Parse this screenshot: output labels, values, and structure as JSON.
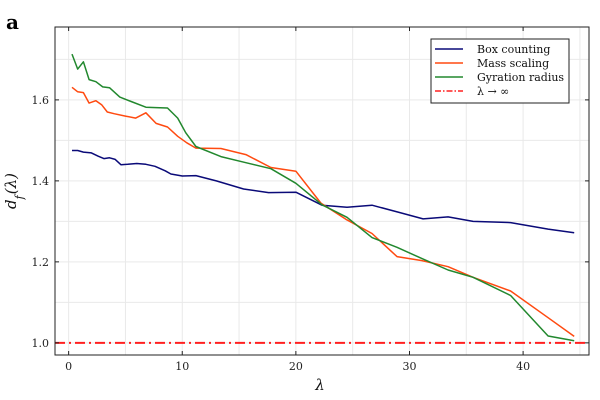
{
  "panel_label": "a",
  "chart_data": {
    "type": "line",
    "xlabel": "λ",
    "ylabel": "d_f(λ)",
    "xlim": [
      -1.2,
      45.8
    ],
    "ylim": [
      0.97,
      1.78
    ],
    "xticks": [
      0,
      10,
      20,
      30,
      40
    ],
    "yticks": [
      1.0,
      1.2,
      1.4,
      1.6
    ],
    "ytick_labels": [
      "1.0",
      "1.2",
      "1.4",
      "1.6"
    ],
    "grid": true,
    "legend_position": "top-right",
    "series": [
      {
        "name": "Box counting",
        "color": "#0a0a78",
        "style": "solid",
        "x": [
          0.3,
          0.8,
          1.3,
          2.0,
          2.6,
          3.1,
          3.6,
          4.1,
          4.6,
          5.2,
          6.0,
          6.8,
          7.6,
          8.5,
          9.0,
          10.0,
          11.2,
          13.0,
          15.4,
          17.6,
          20.0,
          22.3,
          24.5,
          26.7,
          29.0,
          31.2,
          33.4,
          35.6,
          38.9,
          42.2,
          44.5
        ],
        "y": [
          1.475,
          1.475,
          1.471,
          1.469,
          1.461,
          1.455,
          1.457,
          1.453,
          1.44,
          1.441,
          1.443,
          1.441,
          1.436,
          1.425,
          1.417,
          1.412,
          1.413,
          1.4,
          1.38,
          1.371,
          1.372,
          1.34,
          1.335,
          1.34,
          1.323,
          1.306,
          1.311,
          1.3,
          1.297,
          1.281,
          1.272
        ]
      },
      {
        "name": "Mass scaling",
        "color": "#ff4a10",
        "style": "solid",
        "x": [
          0.3,
          0.8,
          1.3,
          1.8,
          2.4,
          2.9,
          3.4,
          4.0,
          5.0,
          5.9,
          6.8,
          7.7,
          8.7,
          9.6,
          10.4,
          11.2,
          13.4,
          15.6,
          17.8,
          20.0,
          22.2,
          24.4,
          26.7,
          28.9,
          31.1,
          33.4,
          35.6,
          38.9,
          42.2,
          44.5
        ],
        "y": [
          1.631,
          1.62,
          1.618,
          1.592,
          1.598,
          1.588,
          1.57,
          1.566,
          1.56,
          1.555,
          1.568,
          1.542,
          1.533,
          1.51,
          1.494,
          1.481,
          1.48,
          1.465,
          1.433,
          1.424,
          1.345,
          1.305,
          1.27,
          1.213,
          1.203,
          1.188,
          1.162,
          1.128,
          1.062,
          1.016
        ]
      },
      {
        "name": "Gyration radius",
        "color": "#22882e",
        "style": "solid",
        "x": [
          0.3,
          0.8,
          1.3,
          1.8,
          2.4,
          3.0,
          3.6,
          4.5,
          5.5,
          6.8,
          7.7,
          8.7,
          9.6,
          10.3,
          11.2,
          13.4,
          15.6,
          17.8,
          20.0,
          22.3,
          24.5,
          26.7,
          28.9,
          31.1,
          33.4,
          35.6,
          38.9,
          42.2,
          44.5
        ],
        "y": [
          1.713,
          1.676,
          1.694,
          1.65,
          1.645,
          1.632,
          1.63,
          1.607,
          1.596,
          1.582,
          1.581,
          1.58,
          1.555,
          1.519,
          1.485,
          1.46,
          1.445,
          1.43,
          1.394,
          1.341,
          1.31,
          1.26,
          1.236,
          1.208,
          1.18,
          1.162,
          1.117,
          1.017,
          1.005
        ]
      },
      {
        "name": "λ → ∞",
        "color": "#ff2020",
        "style": "dashdot",
        "x": [
          -1.2,
          45.8
        ],
        "y": [
          1.0,
          1.0
        ]
      }
    ]
  }
}
